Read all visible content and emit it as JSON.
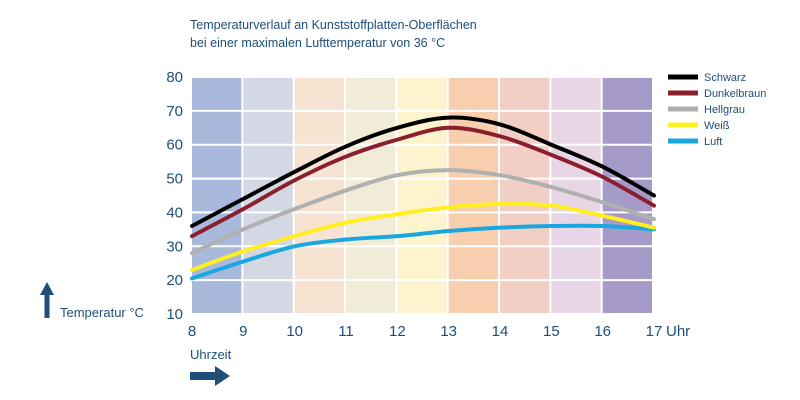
{
  "title": {
    "line1": "Temperaturverlauf an Kunststoffplatten-Oberflächen",
    "line2": "bei einer maximalen Lufttemperatur von 36 °C"
  },
  "colors": {
    "text": "#1f4e79",
    "bands": [
      "#a9b9dc",
      "#d4d8e4",
      "#f6e3d2",
      "#f0ecd7",
      "#fdf3cf",
      "#f8cfae",
      "#f2cfc5",
      "#e7d7e6",
      "#a59ac8"
    ]
  },
  "chart_data": {
    "type": "line",
    "title": "Temperaturverlauf an Kunststoffplatten-Oberflächen bei einer maximalen Lufttemperatur von 36 °C",
    "xlabel": "Uhrzeit",
    "ylabel": "Temperatur °C",
    "x_unit": "Uhr",
    "xlim": [
      8,
      17
    ],
    "ylim": [
      10,
      80
    ],
    "x_ticks": [
      "8",
      "9",
      "10",
      "11",
      "12",
      "13",
      "14",
      "15",
      "16",
      "17"
    ],
    "y_ticks": [
      "10",
      "20",
      "30",
      "40",
      "50",
      "60",
      "70",
      "80"
    ],
    "x": [
      8,
      9,
      10,
      11,
      12,
      13,
      14,
      15,
      16,
      17
    ],
    "series": [
      {
        "name": "Schwarz",
        "color": "#000000",
        "values": [
          36,
          44,
          52,
          59.5,
          65,
          68,
          66,
          60,
          53.5,
          45
        ]
      },
      {
        "name": "Dunkelbraun",
        "color": "#8a1f2e",
        "values": [
          33,
          41,
          49.5,
          56.5,
          61.5,
          65,
          62.5,
          57,
          50.5,
          42
        ]
      },
      {
        "name": "Hellgrau",
        "color": "#b0b0b0",
        "values": [
          28,
          35,
          41,
          46.5,
          51,
          52.5,
          51,
          47.5,
          43,
          38
        ]
      },
      {
        "name": "Weiß",
        "color": "#ffee22",
        "values": [
          23,
          28.5,
          33,
          37,
          39.5,
          41.5,
          42.5,
          42,
          39,
          35.5
        ]
      },
      {
        "name": "Luft",
        "color": "#1aa7e0",
        "values": [
          20.5,
          25.5,
          30,
          32,
          33,
          34.5,
          35.5,
          36,
          36,
          35
        ]
      }
    ]
  }
}
